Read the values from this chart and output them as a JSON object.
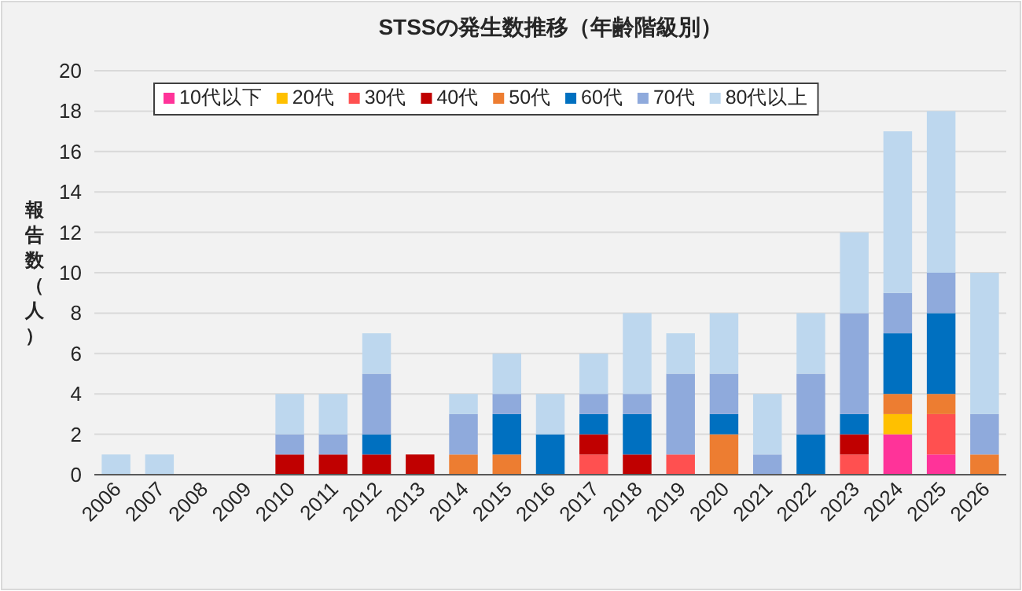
{
  "chart_data": {
    "type": "bar",
    "stacked": true,
    "title": "STSSの発生数推移（年齢階級別）",
    "ylabel": "報告数（人）",
    "categories": [
      "2006",
      "2007",
      "2008",
      "2009",
      "2010",
      "2011",
      "2012",
      "2013",
      "2014",
      "2015",
      "2016",
      "2017",
      "2018",
      "2019",
      "2020",
      "2021",
      "2022",
      "2023",
      "2024",
      "2025",
      "2026"
    ],
    "series": [
      {
        "name": "10代以下",
        "color": "#ff3399",
        "values": [
          0,
          0,
          0,
          0,
          0,
          0,
          0,
          0,
          0,
          0,
          0,
          0,
          0,
          0,
          0,
          0,
          0,
          0,
          2,
          1,
          0
        ]
      },
      {
        "name": "20代",
        "color": "#ffc000",
        "values": [
          0,
          0,
          0,
          0,
          0,
          0,
          0,
          0,
          0,
          0,
          0,
          0,
          0,
          0,
          0,
          0,
          0,
          0,
          1,
          0,
          0
        ]
      },
      {
        "name": "30代",
        "color": "#ff5050",
        "values": [
          0,
          0,
          0,
          0,
          0,
          0,
          0,
          0,
          0,
          0,
          0,
          1,
          0,
          1,
          0,
          0,
          0,
          1,
          0,
          2,
          0
        ]
      },
      {
        "name": "40代",
        "color": "#c00000",
        "values": [
          0,
          0,
          0,
          0,
          1,
          1,
          1,
          1,
          0,
          0,
          0,
          1,
          1,
          0,
          0,
          0,
          0,
          1,
          0,
          0,
          0
        ]
      },
      {
        "name": "50代",
        "color": "#ed7d31",
        "values": [
          0,
          0,
          0,
          0,
          0,
          0,
          0,
          0,
          1,
          1,
          0,
          0,
          0,
          0,
          2,
          0,
          0,
          0,
          1,
          1,
          1
        ]
      },
      {
        "name": "60代",
        "color": "#0070c0",
        "values": [
          0,
          0,
          0,
          0,
          0,
          0,
          1,
          0,
          0,
          2,
          2,
          1,
          2,
          0,
          1,
          0,
          2,
          1,
          3,
          4,
          0
        ]
      },
      {
        "name": "70代",
        "color": "#8faadc",
        "values": [
          0,
          0,
          0,
          0,
          1,
          1,
          3,
          0,
          2,
          1,
          0,
          1,
          1,
          4,
          2,
          1,
          3,
          5,
          2,
          2,
          2
        ]
      },
      {
        "name": "80代以上",
        "color": "#bdd7ee",
        "values": [
          1,
          1,
          0,
          0,
          2,
          2,
          2,
          0,
          1,
          2,
          2,
          2,
          4,
          2,
          3,
          3,
          3,
          4,
          8,
          8,
          7
        ]
      }
    ],
    "ylim": [
      0,
      20
    ],
    "yticks": [
      0,
      2,
      4,
      6,
      8,
      10,
      12,
      14,
      16,
      18,
      20
    ],
    "grid": "y",
    "legend": "top left"
  }
}
